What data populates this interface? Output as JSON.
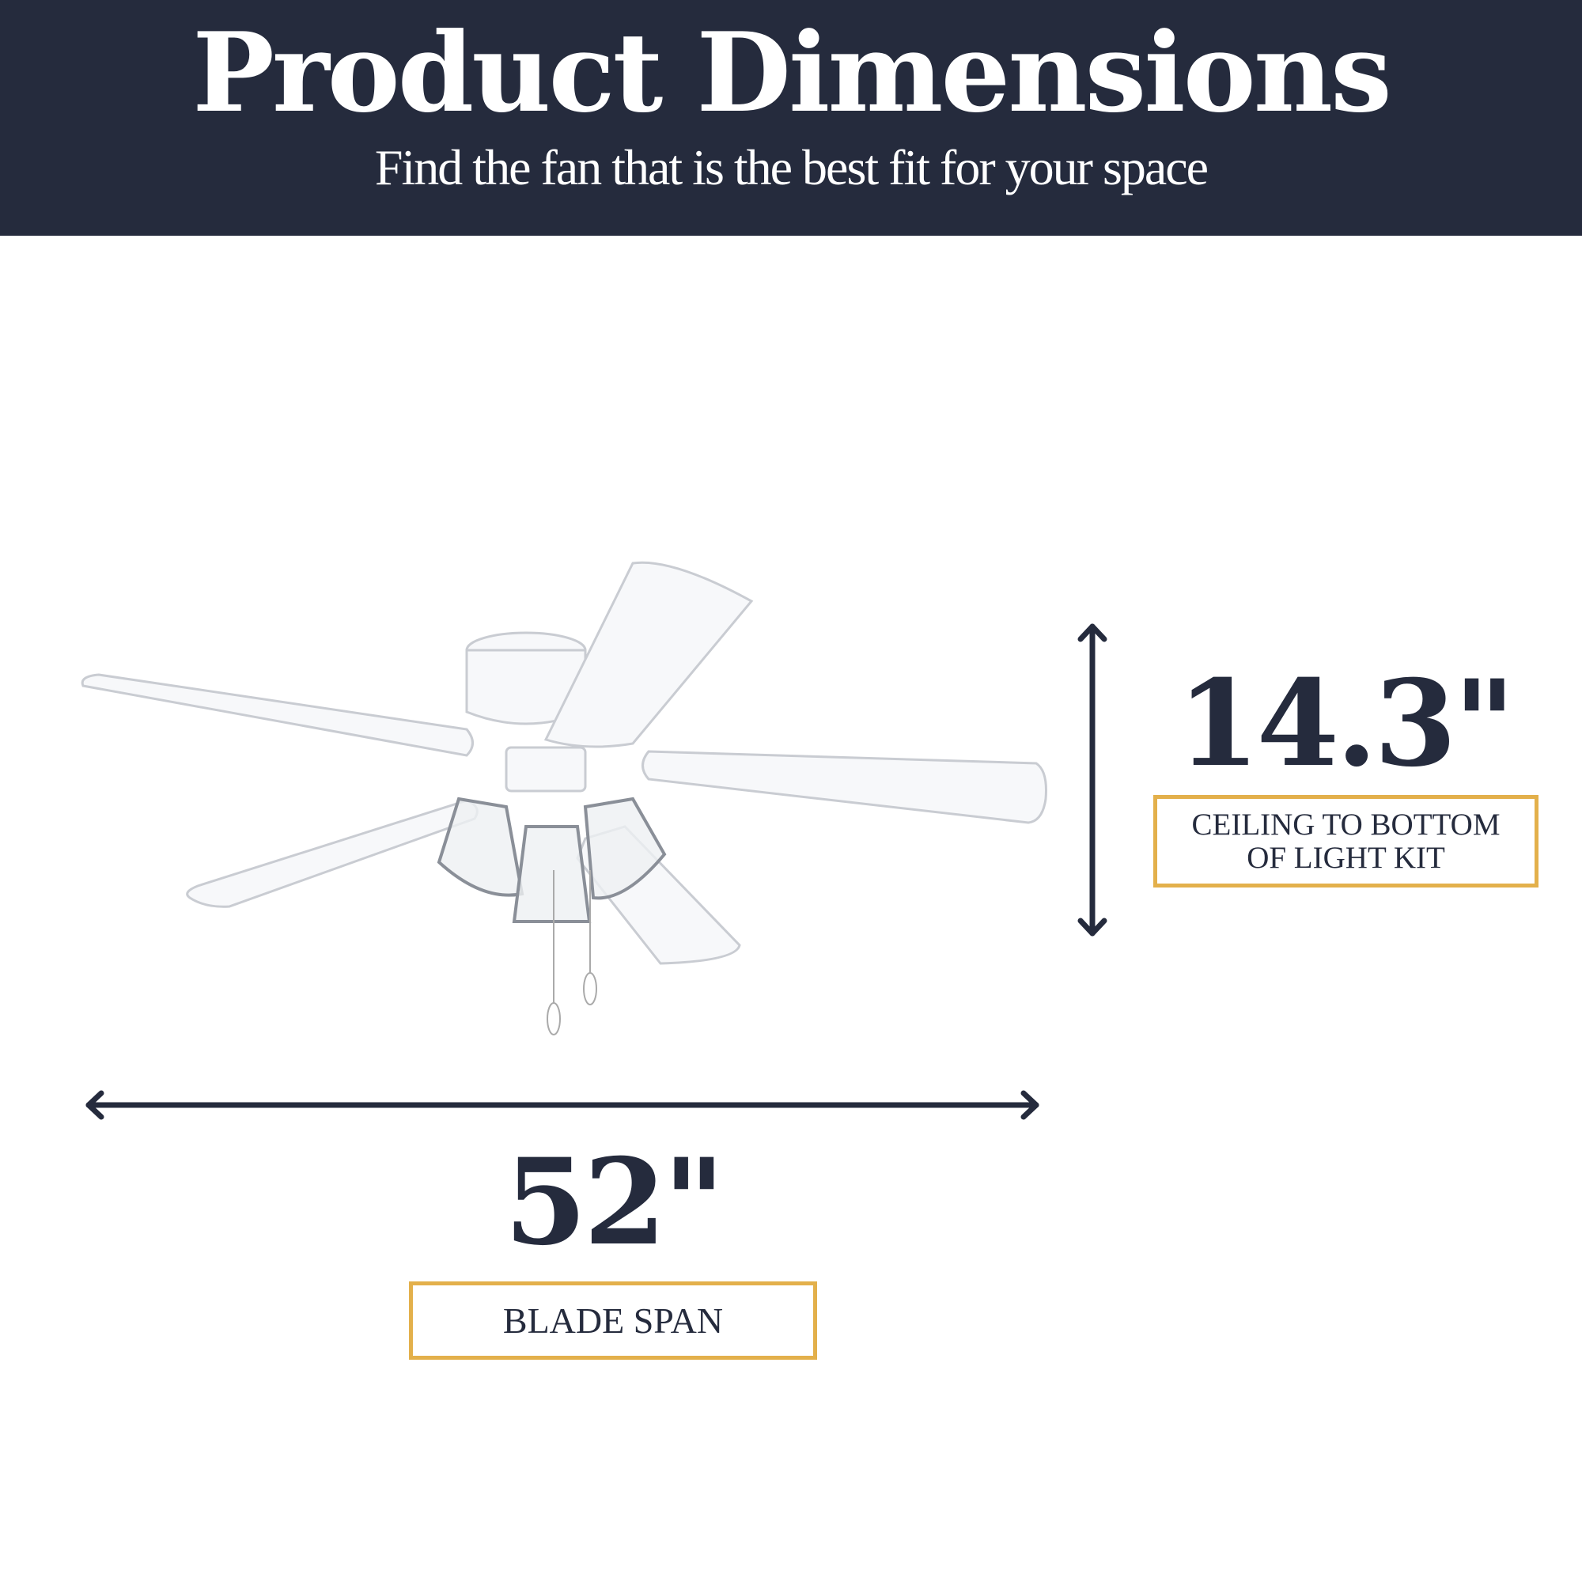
{
  "header": {
    "title": "Product Dimensions",
    "subtitle": "Find the fan that is the best fit for your space"
  },
  "height_dimension": {
    "value": "14.3\"",
    "label": "CEILING TO BOTTOM OF LIGHT KIT"
  },
  "width_dimension": {
    "value": "52\"",
    "label": "BLADE SPAN"
  },
  "colors": {
    "navy": "#252b3d",
    "gold": "#e3b04b",
    "background": "#ffffff"
  },
  "image": {
    "subject": "white ceiling fan with 5 blades and 3-light kit"
  }
}
